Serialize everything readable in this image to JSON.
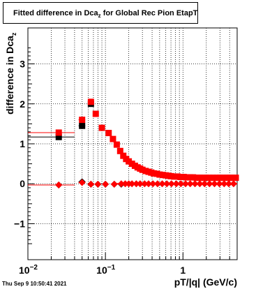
{
  "chart_data": {
    "type": "scatter",
    "title_main": "Fitted difference in Dca",
    "title_sub": "z",
    "title_rest": "  for Global Rec Pion EtapT",
    "xlabel": "pT/|q| (GeV/c)",
    "ylabel_main": "difference in Dca",
    "ylabel_sub": "z",
    "x_scale": "log",
    "xlim": [
      0.01,
      5
    ],
    "ylim": [
      -1.9,
      3.9
    ],
    "grid": true,
    "x_tick_labels": [
      {
        "value": 0.01,
        "base": "10",
        "exp": "−2"
      },
      {
        "value": 0.1,
        "base": "10",
        "exp": "−1"
      },
      {
        "value": 1,
        "base": "1",
        "exp": ""
      }
    ],
    "y_ticks": [
      -1,
      0,
      1,
      2,
      3
    ],
    "series": [
      {
        "color": "#000000",
        "marker_mean": "square",
        "marker_sigma": "diamond",
        "mean_x": [
          0.025,
          0.05,
          0.065
        ],
        "mean_y": [
          1.17,
          1.45,
          2.0
        ],
        "mean_xerr": [
          [
            0.01,
            0.04
          ],
          [
            0.045,
            0.055
          ],
          [
            0.06,
            0.07
          ]
        ],
        "sigma_x": [
          0.025,
          0.05,
          0.065,
          0.08,
          0.1,
          0.13,
          0.16
        ],
        "sigma_y": [
          -0.03,
          0.05,
          -0.01,
          -0.01,
          -0.01,
          -0.01,
          -0.01
        ]
      },
      {
        "color": "#ff0000",
        "marker_mean": "square",
        "marker_sigma": "diamond",
        "mean_x": [
          0.025,
          0.05,
          0.065,
          0.075,
          0.09,
          0.11,
          0.125,
          0.14,
          0.155,
          0.17,
          0.185,
          0.2,
          0.22,
          0.24,
          0.26,
          0.28,
          0.3,
          0.33,
          0.36,
          0.39,
          0.42,
          0.46,
          0.5,
          0.55,
          0.6,
          0.65,
          0.7,
          0.77,
          0.85,
          0.93,
          1.02,
          1.12,
          1.23,
          1.35,
          1.5,
          1.65,
          1.8,
          2.0,
          2.2,
          2.45,
          2.7,
          3.0,
          3.3,
          3.65,
          4.0,
          4.4,
          4.8
        ],
        "mean_y": [
          1.28,
          1.6,
          2.05,
          1.75,
          1.4,
          1.27,
          1.12,
          0.98,
          0.82,
          0.7,
          0.62,
          0.56,
          0.5,
          0.45,
          0.41,
          0.38,
          0.35,
          0.32,
          0.3,
          0.28,
          0.26,
          0.25,
          0.23,
          0.22,
          0.21,
          0.2,
          0.19,
          0.18,
          0.18,
          0.17,
          0.17,
          0.16,
          0.16,
          0.16,
          0.15,
          0.15,
          0.15,
          0.15,
          0.15,
          0.15,
          0.15,
          0.15,
          0.15,
          0.15,
          0.15,
          0.15,
          0.15
        ],
        "mean_xerr": [
          [
            0.01,
            0.04
          ],
          [
            0.045,
            0.055
          ],
          [
            0.06,
            0.07
          ]
        ],
        "sigma_x": [
          0.025,
          0.05,
          0.065,
          0.08,
          0.1,
          0.13,
          0.16,
          0.18,
          0.2,
          0.22,
          0.25,
          0.28,
          0.32,
          0.36,
          0.41,
          0.47,
          0.54,
          0.62,
          0.71,
          0.82,
          0.94,
          1.08,
          1.24,
          1.43,
          1.65,
          1.9,
          2.2,
          2.55,
          2.95,
          3.4,
          3.9,
          4.5
        ],
        "sigma_y": [
          -0.03,
          0.03,
          -0.01,
          -0.01,
          -0.01,
          -0.01,
          0.0,
          0.0,
          0.0,
          0.0,
          0.0,
          0.0,
          0.0,
          0.0,
          0.0,
          0.0,
          0.0,
          0.0,
          0.0,
          0.0,
          0.0,
          0.0,
          0.0,
          0.0,
          0.0,
          0.0,
          0.0,
          0.0,
          0.0,
          0.0,
          0.0,
          0.0
        ]
      }
    ]
  },
  "timestamp": "Thu Sep  9 10:50:41 2021"
}
